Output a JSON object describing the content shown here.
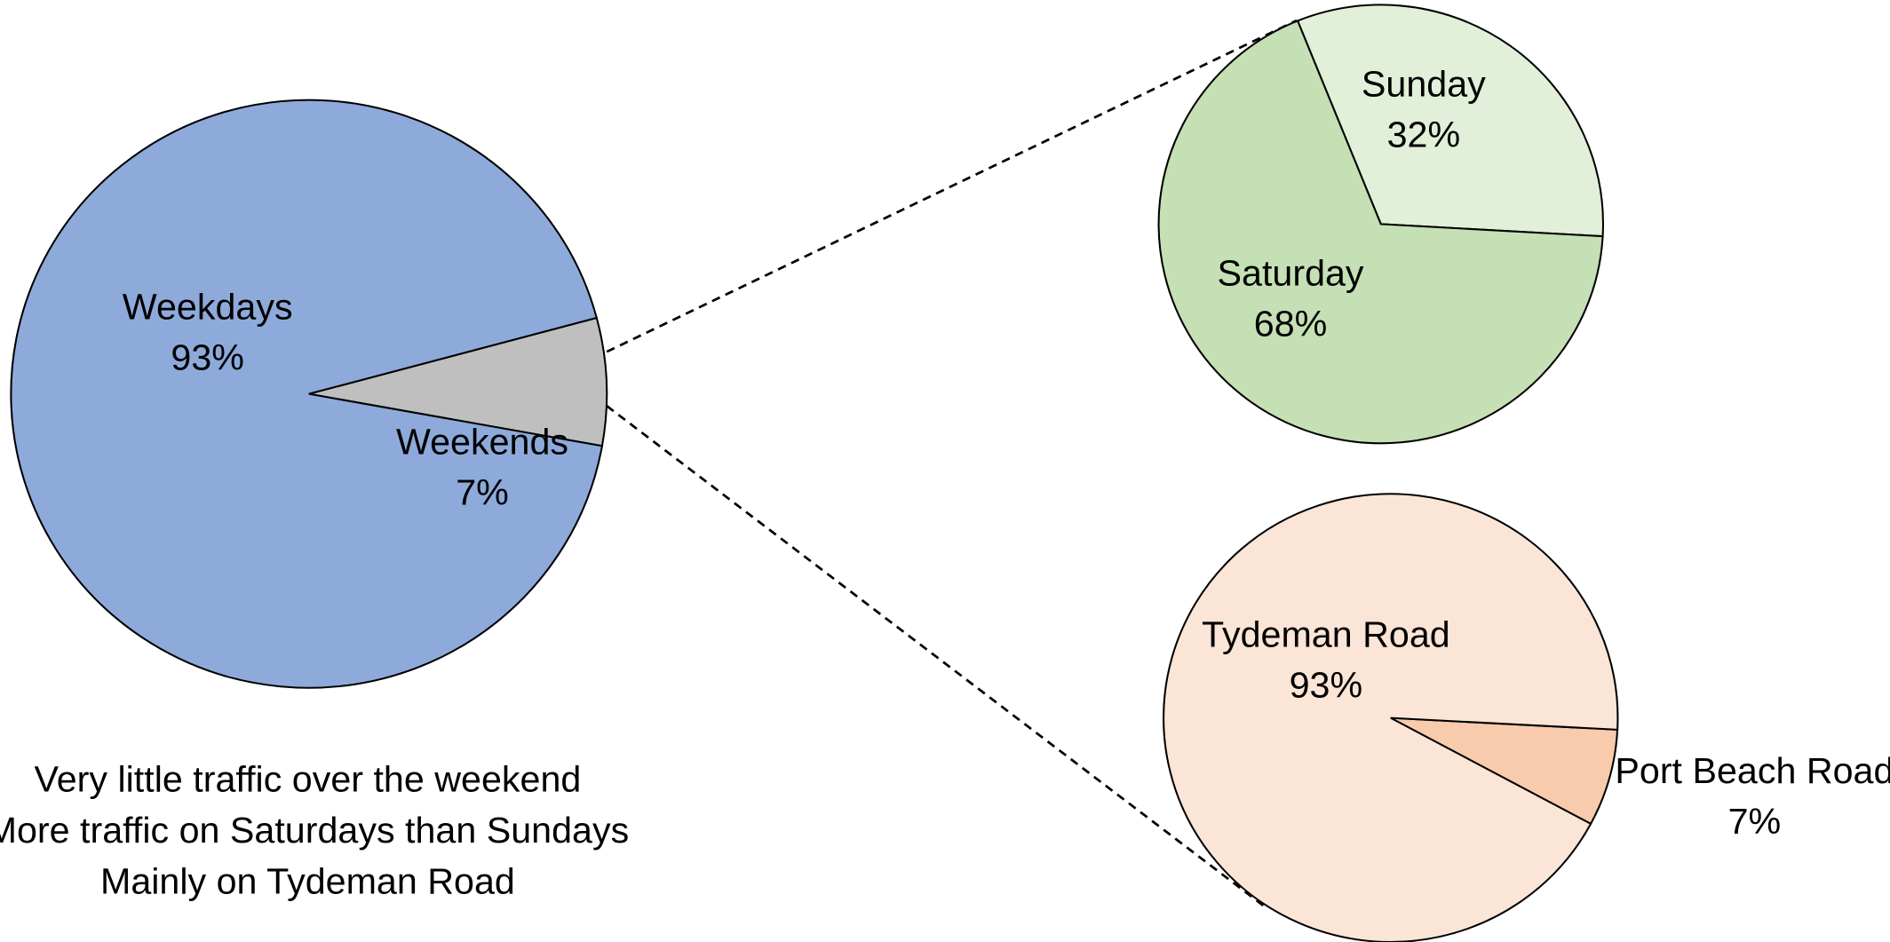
{
  "chart_data": [
    {
      "type": "pie",
      "categories": [
        "Weekdays",
        "Weekends"
      ],
      "values": [
        93,
        7
      ],
      "value_labels": [
        "93%",
        "7%"
      ],
      "colors": [
        "#8eaadb",
        "#bfbfbf"
      ],
      "annotations": [
        "Very little traffic over the weekend",
        "More traffic on Saturdays than Sundays",
        "Mainly on Tydeman Road"
      ]
    },
    {
      "type": "pie",
      "categories": [
        "Sunday",
        "Saturday"
      ],
      "values": [
        32,
        68
      ],
      "value_labels": [
        "32%",
        "68%"
      ],
      "colors": [
        "#e2efd9",
        "#c5e0b4"
      ]
    },
    {
      "type": "pie",
      "categories": [
        "Port Beach Road",
        "Tydeman Road"
      ],
      "values": [
        7,
        93
      ],
      "value_labels": [
        "7%",
        "93%"
      ],
      "colors": [
        "#f8cbad",
        "#fbe5d6"
      ]
    }
  ]
}
